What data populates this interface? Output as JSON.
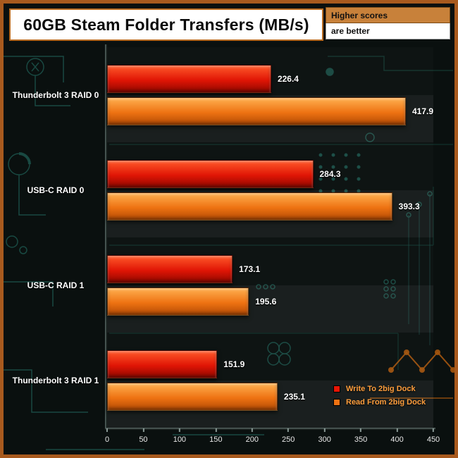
{
  "frame": {
    "border_color": "#a85a1e"
  },
  "header": {
    "title": "60GB Steam Folder Transfers (MB/s)",
    "note_top": "Higher scores",
    "note_bottom": "are better"
  },
  "chart_data": {
    "type": "bar",
    "orientation": "horizontal",
    "title": "60GB Steam Folder Transfers (MB/s)",
    "categories": [
      "Thunderbolt 3 RAID 0",
      "USB-C RAID 0",
      "USB-C RAID 1",
      "Thunderbolt 3 RAID 1"
    ],
    "series": [
      {
        "name": "Write To 2big Dock",
        "color": "#e81505",
        "gradient": [
          "#ff5a2a",
          "#e01505",
          "#8f0800"
        ],
        "values": [
          226.4,
          284.3,
          173.1,
          151.9
        ]
      },
      {
        "name": "Read From 2big Dock",
        "color": "#ee7212",
        "gradient": [
          "#ffb050",
          "#ee7212",
          "#b24a04"
        ],
        "values": [
          417.9,
          393.3,
          195.6,
          235.1
        ]
      }
    ],
    "xlim": [
      0,
      450
    ],
    "x_ticks": [
      0,
      50,
      100,
      150,
      200,
      250,
      300,
      350,
      400,
      450
    ],
    "xlabel": "",
    "ylabel": "",
    "grid": false,
    "legend_position": "bottom-right"
  }
}
